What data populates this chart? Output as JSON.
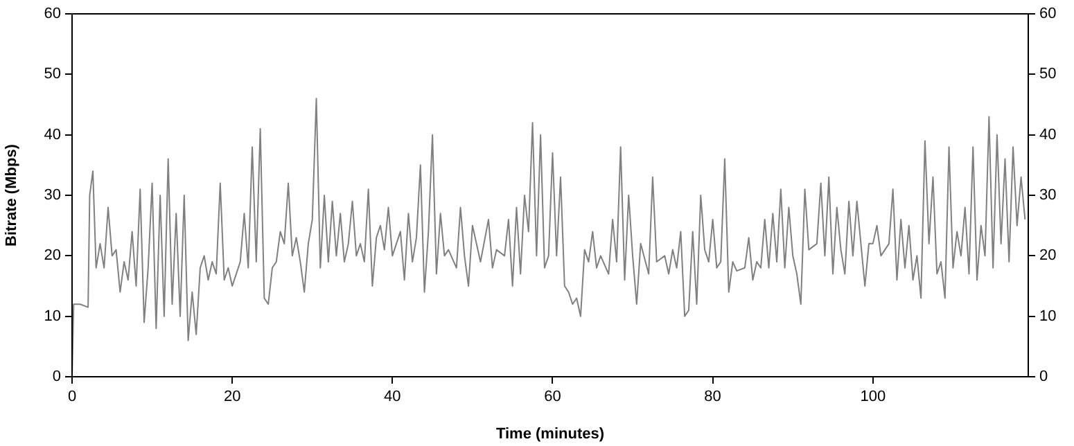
{
  "chart_data": {
    "type": "line",
    "xlabel": "Time (minutes)",
    "ylabel": "Bitrate (Mbps)",
    "xlim": [
      0,
      119.4
    ],
    "xticks": [
      0,
      20,
      40,
      60,
      80,
      100
    ],
    "ylim": [
      0,
      60
    ],
    "yticks": [
      0,
      10,
      20,
      30,
      40,
      50,
      60
    ],
    "y2lim": [
      0,
      60
    ],
    "y2ticks": [
      0,
      10,
      20,
      30,
      40,
      50,
      60
    ],
    "grid": false,
    "legend": false,
    "marker": "none",
    "line_style": "solid",
    "series": [
      {
        "color": "#808080",
        "x": [
          0,
          0.2,
          1,
          2,
          2.2,
          2.6,
          3,
          3.5,
          4,
          4.5,
          5,
          5.5,
          6,
          6.5,
          7,
          7.5,
          8,
          8.5,
          9,
          9.5,
          10,
          10.5,
          11,
          11.5,
          12,
          12.5,
          13,
          13.5,
          14,
          14.5,
          15,
          15.5,
          16,
          16.5,
          17,
          17.5,
          18,
          18.5,
          19,
          19.5,
          20,
          21,
          21.5,
          22,
          22.5,
          23,
          23.5,
          24,
          24.5,
          25,
          25.5,
          26,
          26.5,
          27,
          27.5,
          28,
          28.5,
          29,
          29.5,
          30,
          30.5,
          31,
          31.5,
          32,
          32.5,
          33,
          33.5,
          34,
          34.5,
          35,
          35.5,
          36,
          36.5,
          37,
          37.5,
          38,
          38.5,
          39,
          39.5,
          40,
          41,
          41.5,
          42,
          42.5,
          43,
          43.5,
          44,
          44.5,
          45,
          45.5,
          46,
          46.5,
          47,
          48,
          48.5,
          49,
          49.5,
          50,
          51,
          52,
          52.5,
          53,
          54,
          54.5,
          55,
          55.5,
          56,
          56.5,
          57,
          57.5,
          58,
          58.5,
          59,
          59.5,
          60,
          60.5,
          61,
          61.5,
          62,
          62.5,
          63,
          63.5,
          64,
          64.5,
          65,
          65.5,
          66,
          67,
          67.5,
          68,
          68.5,
          69,
          69.5,
          70,
          70.5,
          71,
          72,
          72.5,
          73,
          74,
          74.5,
          75,
          75.5,
          76,
          76.5,
          77,
          77.5,
          78,
          78.5,
          79,
          79.5,
          80,
          80.5,
          81,
          81.5,
          82,
          82.5,
          83,
          84,
          84.5,
          85,
          85.5,
          86,
          86.5,
          87,
          87.5,
          88,
          88.5,
          89,
          89.5,
          90,
          90.5,
          91,
          91.5,
          92,
          93,
          93.5,
          94,
          94.5,
          95,
          95.5,
          96,
          96.5,
          97,
          97.5,
          98,
          98.5,
          99,
          99.5,
          100,
          100.5,
          101,
          102,
          102.5,
          103,
          103.5,
          104,
          104.5,
          105,
          105.5,
          106,
          106.5,
          107,
          107.5,
          108,
          108.5,
          109,
          109.5,
          110,
          110.5,
          111,
          111.5,
          112,
          112.5,
          113,
          113.5,
          114,
          114.5,
          115,
          115.5,
          116,
          116.5,
          117,
          117.5,
          118,
          118.5,
          119
        ],
        "values": [
          0,
          12,
          12,
          11.5,
          30,
          34,
          18,
          22,
          18,
          28,
          20,
          21,
          14,
          19,
          16,
          24,
          15,
          31,
          9,
          18,
          32,
          8,
          30,
          10,
          36,
          12,
          27,
          10,
          30,
          6,
          14,
          7,
          18,
          20,
          16,
          19,
          17,
          32,
          16,
          18,
          15,
          19,
          27,
          18,
          38,
          19,
          41,
          13,
          12,
          18,
          19,
          24,
          22,
          32,
          20,
          23,
          19,
          14,
          22,
          26,
          46,
          18,
          30,
          19,
          29,
          20,
          27,
          19,
          22,
          29,
          20,
          22,
          19,
          31,
          15,
          23,
          25,
          21,
          28,
          20,
          24,
          16,
          27,
          19,
          23,
          35,
          14,
          24,
          40,
          17,
          27,
          20,
          21,
          18,
          28,
          20,
          15,
          25,
          19,
          26,
          18,
          21,
          20,
          26,
          15,
          28,
          17,
          30,
          24,
          42,
          20,
          40,
          18,
          20,
          37,
          20,
          33,
          15,
          14,
          12,
          13,
          10,
          21,
          19,
          24,
          18,
          20,
          17,
          26,
          19,
          38,
          16,
          30,
          20,
          12,
          22,
          17,
          33,
          19,
          20,
          17,
          21,
          18,
          24,
          10,
          11,
          24,
          12,
          30,
          21,
          19,
          26,
          18,
          19,
          36,
          14,
          19,
          17.5,
          18,
          23,
          16,
          19,
          18,
          26,
          18,
          27,
          19,
          31,
          18,
          28,
          20,
          17,
          12,
          31,
          21,
          22,
          32,
          20,
          33,
          17,
          28,
          21,
          17,
          29,
          20,
          29,
          22,
          15,
          22,
          22,
          25,
          20,
          22,
          31,
          16,
          26,
          18,
          25,
          16,
          20,
          13,
          39,
          22,
          33,
          17,
          19,
          13,
          38,
          18,
          24,
          20,
          28,
          17,
          38,
          16,
          25,
          20,
          43,
          18,
          40,
          22,
          36,
          19,
          38,
          25,
          33,
          26
        ]
      }
    ]
  }
}
